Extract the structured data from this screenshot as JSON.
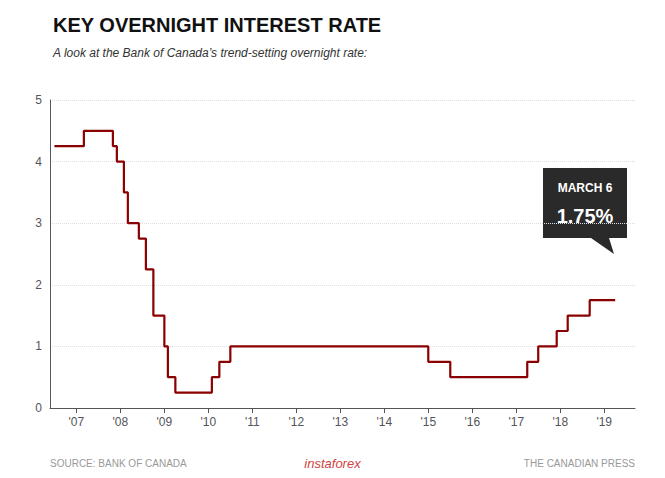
{
  "chart_data": {
    "type": "line",
    "title": "KEY OVERNIGHT INTEREST RATE",
    "subtitle": "A look at the Bank of Canada’s trend-setting overnight rate:",
    "annotations": [
      "MARCH 6",
      "1.75%"
    ],
    "sources": [
      "SOURCE: BANK OF CANADA",
      "instaforex",
      "THE CANADIAN PRESS"
    ],
    "line_style": "step",
    "color": "#8B0000",
    "grid": true,
    "x": [
      2006.5,
      2007.0,
      2007.17,
      2007.75,
      2007.83,
      2007.92,
      2008.0,
      2008.08,
      2008.17,
      2008.33,
      2008.42,
      2008.58,
      2008.75,
      2008.92,
      2009.0,
      2009.08,
      2009.25,
      2010.0,
      2010.08,
      2010.25,
      2010.5,
      2014.5,
      2015.0,
      2015.33,
      2015.5,
      2017.0,
      2017.25,
      2017.5,
      2017.75,
      2017.92,
      2018.08,
      2018.17,
      2018.5,
      2018.67,
      2019.25
    ],
    "values": [
      4.25,
      4.25,
      4.5,
      4.5,
      4.25,
      4.0,
      4.0,
      3.5,
      3.0,
      3.0,
      2.75,
      2.25,
      1.5,
      1.5,
      1.0,
      0.5,
      0.25,
      0.25,
      0.5,
      0.75,
      1.0,
      1.0,
      0.75,
      0.75,
      0.5,
      0.5,
      0.75,
      1.0,
      1.0,
      1.25,
      1.25,
      1.5,
      1.5,
      1.75,
      1.75
    ],
    "xlim": [
      2006.4,
      2019.7
    ],
    "xticks": [
      {
        "value": 2007,
        "label": "'07"
      },
      {
        "value": 2008,
        "label": "'08"
      },
      {
        "value": 2009,
        "label": "'09"
      },
      {
        "value": 2010,
        "label": "'10"
      },
      {
        "value": 2011,
        "label": "'11"
      },
      {
        "value": 2012,
        "label": "'12"
      },
      {
        "value": 2013,
        "label": "'13"
      },
      {
        "value": 2014,
        "label": "'14"
      },
      {
        "value": 2015,
        "label": "'15"
      },
      {
        "value": 2016,
        "label": "'16"
      },
      {
        "value": 2017,
        "label": "'17"
      },
      {
        "value": 2018,
        "label": "'18"
      },
      {
        "value": 2019,
        "label": "'19"
      }
    ],
    "ylim": [
      0,
      5
    ],
    "yticks": [
      0,
      1,
      2,
      3,
      4,
      5
    ]
  }
}
